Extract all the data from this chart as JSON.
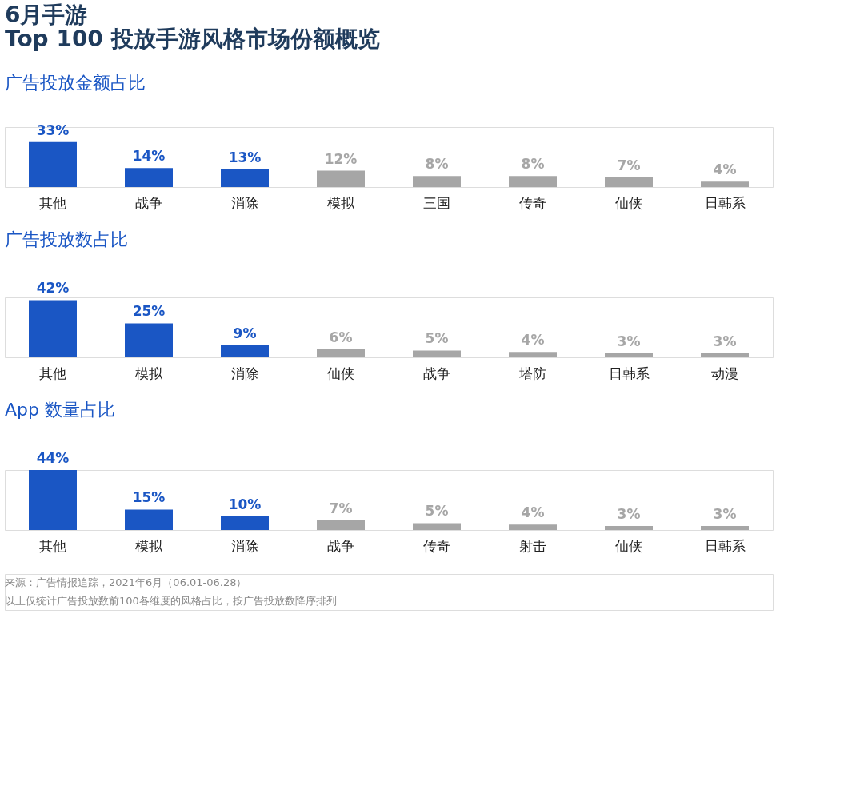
{
  "chart_data": [
    {
      "type": "bar",
      "title": [
        "6月手游",
        "Top 100 投放手游风格市场份额概览"
      ],
      "subtitle": "广告投放金额占比",
      "categories": [
        "其他",
        "战争",
        "消除",
        "模拟",
        "三国",
        "传奇",
        "仙侠",
        "日韩系"
      ],
      "values": [
        33,
        14,
        13,
        12,
        8,
        8,
        7,
        4
      ],
      "value_labels": [
        "33%",
        "14%",
        "13%",
        "12%",
        "8%",
        "8%",
        "7%",
        "4%"
      ],
      "colors": [
        "#1a56c4",
        "#1a56c4",
        "#1a56c4",
        "#a6a6a6",
        "#a6a6a6",
        "#a6a6a6",
        "#a6a6a6",
        "#a6a6a6"
      ],
      "tick_labels": "x",
      "grid": false,
      "legend": false
    },
    {
      "type": "bar",
      "subtitle": "广告投放数占比",
      "categories": [
        "其他",
        "模拟",
        "消除",
        "仙侠",
        "战争",
        "塔防",
        "日韩系",
        "动漫"
      ],
      "values": [
        42,
        25,
        9,
        6,
        5,
        4,
        3,
        3
      ],
      "value_labels": [
        "42%",
        "25%",
        "9%",
        "6%",
        "5%",
        "4%",
        "3%",
        "3%"
      ],
      "colors": [
        "#1a56c4",
        "#1a56c4",
        "#1a56c4",
        "#a6a6a6",
        "#a6a6a6",
        "#a6a6a6",
        "#a6a6a6",
        "#a6a6a6"
      ],
      "tick_labels": "x",
      "grid": false,
      "legend": false
    },
    {
      "type": "bar",
      "subtitle": "App 数量占比",
      "categories": [
        "其他",
        "模拟",
        "消除",
        "战争",
        "传奇",
        "射击",
        "仙侠",
        "日韩系"
      ],
      "values": [
        44,
        15,
        10,
        7,
        5,
        4,
        3,
        3
      ],
      "value_labels": [
        "44%",
        "15%",
        "10%",
        "7%",
        "5%",
        "4%",
        "3%",
        "3%"
      ],
      "colors": [
        "#1a56c4",
        "#1a56c4",
        "#1a56c4",
        "#a6a6a6",
        "#a6a6a6",
        "#a6a6a6",
        "#a6a6a6",
        "#a6a6a6"
      ],
      "tick_labels": "x",
      "grid": false,
      "legend": false,
      "annotations": [
        "来源：广告情报追踪，2021年6月（06.01-06.28）",
        "以上仅统计广告投放数前100各维度的风格占比，按广告投放数降序排列"
      ]
    }
  ]
}
